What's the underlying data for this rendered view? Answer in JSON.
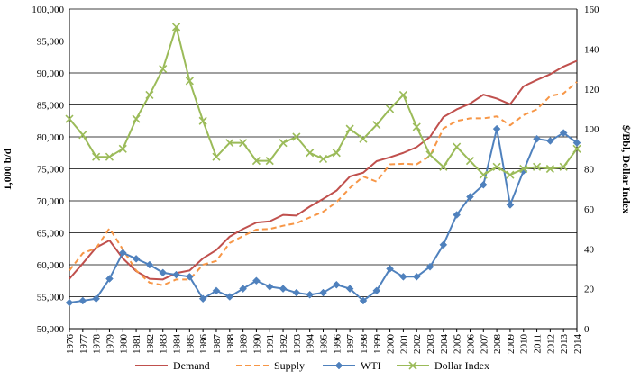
{
  "chart_data": {
    "type": "line",
    "title": "",
    "xlabel": "",
    "ylabel_left": "1,000 b/d",
    "ylabel_right": "$/Bbl, Dollar Index",
    "categories": [
      "1976",
      "1977",
      "1978",
      "1979",
      "1980",
      "1981",
      "1982",
      "1983",
      "1984",
      "1985",
      "1986",
      "1987",
      "1988",
      "1989",
      "1990",
      "1991",
      "1992",
      "1993",
      "1994",
      "1995",
      "1996",
      "1997",
      "1998",
      "1999",
      "2000",
      "2001",
      "2002",
      "2003",
      "2004",
      "2005",
      "2006",
      "2007",
      "2008",
      "2009",
      "2010",
      "2011",
      "2012",
      "2013",
      "2014"
    ],
    "left_axis": {
      "min": 50000,
      "max": 100000,
      "step": 5000,
      "tick_labels": [
        "50,000",
        "55,000",
        "60,000",
        "65,000",
        "70,000",
        "75,000",
        "80,000",
        "85,000",
        "90,000",
        "95,000",
        "100,000"
      ]
    },
    "right_axis": {
      "min": 0,
      "max": 160,
      "step": 20,
      "tick_labels": [
        "0",
        "20",
        "40",
        "60",
        "80",
        "100",
        "120",
        "140",
        "160"
      ]
    },
    "grid": "horizontal",
    "legend_position": "bottom",
    "series": [
      {
        "name": "Demand",
        "axis": "left",
        "style": "solid",
        "marker": "none",
        "color": "#c0504d",
        "values": [
          57800,
          60200,
          62700,
          63800,
          61000,
          59000,
          57800,
          57700,
          58700,
          59100,
          61000,
          62300,
          64400,
          65600,
          66600,
          66800,
          67800,
          67700,
          69100,
          70300,
          71600,
          73800,
          74400,
          76200,
          76800,
          77500,
          78400,
          80000,
          83100,
          84300,
          85200,
          86600,
          86000,
          85100,
          87900,
          88900,
          89800,
          91000,
          91900
        ]
      },
      {
        "name": "Supply",
        "axis": "left",
        "style": "dashed",
        "marker": "none",
        "color": "#f79646",
        "values": [
          59100,
          61800,
          62600,
          65700,
          62400,
          59100,
          57200,
          56800,
          57700,
          57700,
          60000,
          60600,
          63400,
          64500,
          65500,
          65600,
          66100,
          66500,
          67400,
          68300,
          69800,
          72000,
          73800,
          73000,
          75700,
          75800,
          75700,
          77000,
          81300,
          82500,
          82900,
          82900,
          83200,
          81800,
          83400,
          84300,
          86400,
          86800,
          88600
        ]
      },
      {
        "name": "WTI",
        "axis": "right",
        "style": "solid",
        "marker": "diamond",
        "color": "#4f81bd",
        "values": [
          13,
          14,
          15,
          25,
          38,
          35,
          32,
          28,
          27,
          26,
          15,
          19,
          16,
          20,
          24,
          21,
          20,
          18,
          17,
          18,
          22,
          20,
          14,
          19,
          30,
          26,
          26,
          31,
          42,
          57,
          66,
          72,
          100,
          62,
          79,
          95,
          94,
          98,
          93
        ]
      },
      {
        "name": "Dollar Index",
        "axis": "right",
        "style": "solid",
        "marker": "x",
        "color": "#9bbb59",
        "values": [
          105,
          97,
          86,
          86,
          90,
          105,
          117,
          130,
          151,
          124,
          104,
          86,
          93,
          93,
          84,
          84,
          93,
          96,
          88,
          85,
          88,
          100,
          95,
          102,
          110,
          117,
          101,
          87,
          81,
          91,
          84,
          77,
          81,
          77,
          80,
          81,
          80,
          81,
          90
        ]
      }
    ]
  }
}
